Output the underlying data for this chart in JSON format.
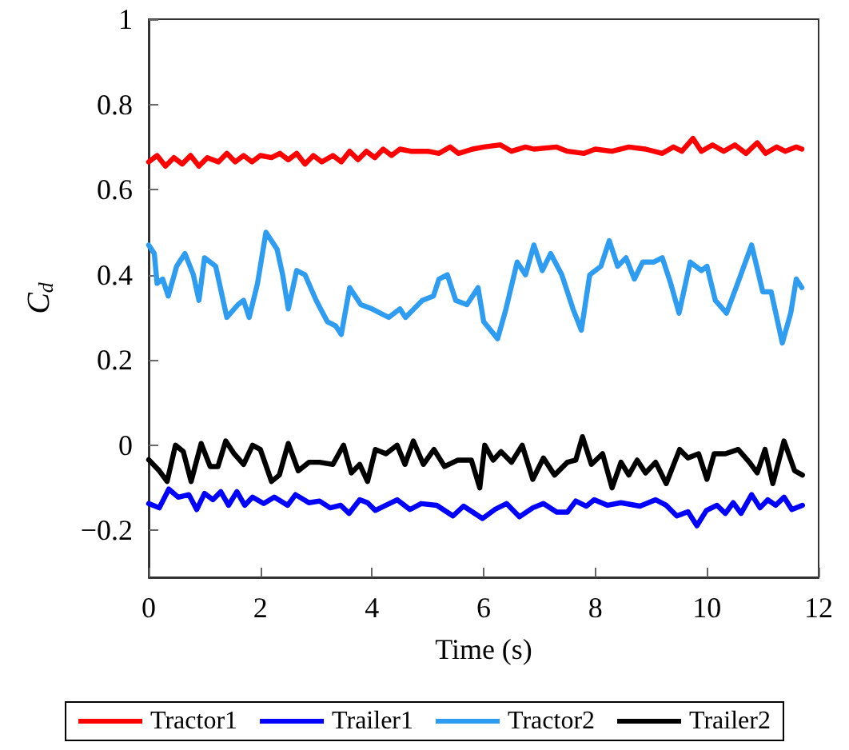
{
  "chart_data": {
    "type": "line",
    "xlabel": "Time (s)",
    "ylabel": "C$_{d}$",
    "xlim": [
      0,
      12
    ],
    "xticks": [
      0,
      2,
      4,
      6,
      8,
      10,
      12
    ],
    "ylim": [
      -0.31,
      1
    ],
    "yticks": [
      -0.2,
      0,
      0.2,
      0.4,
      0.6,
      0.8,
      1
    ],
    "grid": false,
    "legend": "bottom",
    "marker": "none",
    "line_style": "solid",
    "series": [
      {
        "name": "Tractor1",
        "color": "#ff0000",
        "x": [
          0,
          0.15,
          0.3,
          0.45,
          0.6,
          0.75,
          0.9,
          1.05,
          1.25,
          1.4,
          1.55,
          1.7,
          1.85,
          2.0,
          2.2,
          2.35,
          2.5,
          2.65,
          2.8,
          2.95,
          3.1,
          3.3,
          3.45,
          3.6,
          3.75,
          3.9,
          4.05,
          4.2,
          4.35,
          4.5,
          4.7,
          5.0,
          5.2,
          5.4,
          5.55,
          5.8,
          6.0,
          6.3,
          6.5,
          6.75,
          6.9,
          7.3,
          7.5,
          7.8,
          8.0,
          8.3,
          8.6,
          8.9,
          9.2,
          9.4,
          9.55,
          9.75,
          9.9,
          10.1,
          10.3,
          10.5,
          10.7,
          10.9,
          11.05,
          11.25,
          11.4,
          11.6,
          11.7
        ],
        "values": [
          0.665,
          0.68,
          0.655,
          0.675,
          0.66,
          0.68,
          0.655,
          0.675,
          0.665,
          0.685,
          0.665,
          0.68,
          0.665,
          0.68,
          0.675,
          0.685,
          0.67,
          0.685,
          0.66,
          0.68,
          0.665,
          0.68,
          0.665,
          0.69,
          0.67,
          0.69,
          0.675,
          0.695,
          0.68,
          0.695,
          0.69,
          0.69,
          0.685,
          0.7,
          0.685,
          0.695,
          0.7,
          0.705,
          0.69,
          0.7,
          0.695,
          0.7,
          0.69,
          0.685,
          0.695,
          0.69,
          0.7,
          0.695,
          0.685,
          0.7,
          0.69,
          0.72,
          0.69,
          0.705,
          0.69,
          0.705,
          0.685,
          0.71,
          0.685,
          0.7,
          0.69,
          0.7,
          0.695
        ]
      },
      {
        "name": "Trailer1",
        "color": "#0000ff",
        "x": [
          0,
          0.19,
          0.36,
          0.53,
          0.72,
          0.86,
          1.0,
          1.15,
          1.29,
          1.43,
          1.58,
          1.72,
          1.86,
          2.06,
          2.25,
          2.49,
          2.63,
          2.87,
          3.06,
          3.25,
          3.44,
          3.59,
          3.78,
          3.92,
          4.06,
          4.25,
          4.45,
          4.68,
          4.88,
          5.16,
          5.45,
          5.64,
          5.98,
          6.21,
          6.41,
          6.64,
          6.88,
          7.07,
          7.31,
          7.5,
          7.65,
          7.84,
          7.98,
          8.22,
          8.46,
          8.8,
          9.08,
          9.27,
          9.46,
          9.66,
          9.82,
          9.99,
          10.18,
          10.33,
          10.47,
          10.61,
          10.8,
          10.95,
          11.09,
          11.23,
          11.38,
          11.52,
          11.71
        ],
        "values": [
          -0.137,
          -0.147,
          -0.103,
          -0.122,
          -0.116,
          -0.151,
          -0.113,
          -0.128,
          -0.109,
          -0.141,
          -0.109,
          -0.141,
          -0.122,
          -0.137,
          -0.122,
          -0.141,
          -0.116,
          -0.135,
          -0.131,
          -0.147,
          -0.141,
          -0.16,
          -0.128,
          -0.135,
          -0.153,
          -0.141,
          -0.128,
          -0.151,
          -0.137,
          -0.141,
          -0.166,
          -0.143,
          -0.172,
          -0.15,
          -0.137,
          -0.168,
          -0.147,
          -0.137,
          -0.157,
          -0.157,
          -0.131,
          -0.143,
          -0.128,
          -0.141,
          -0.135,
          -0.143,
          -0.128,
          -0.141,
          -0.166,
          -0.156,
          -0.189,
          -0.153,
          -0.141,
          -0.16,
          -0.135,
          -0.16,
          -0.116,
          -0.147,
          -0.128,
          -0.141,
          -0.122,
          -0.151,
          -0.141
        ]
      },
      {
        "name": "Tractor2",
        "color": "#2e9cf0",
        "x": [
          0,
          0.1,
          0.15,
          0.25,
          0.35,
          0.5,
          0.65,
          0.8,
          0.9,
          1.0,
          1.2,
          1.4,
          1.6,
          1.7,
          1.8,
          1.95,
          2.1,
          2.3,
          2.4,
          2.5,
          2.65,
          2.8,
          3.0,
          3.2,
          3.35,
          3.45,
          3.6,
          3.8,
          4.0,
          4.3,
          4.5,
          4.6,
          4.9,
          5.1,
          5.2,
          5.35,
          5.5,
          5.7,
          5.9,
          6.0,
          6.25,
          6.4,
          6.6,
          6.75,
          6.9,
          7.05,
          7.2,
          7.4,
          7.6,
          7.75,
          7.9,
          8.1,
          8.25,
          8.4,
          8.55,
          8.7,
          8.85,
          9.05,
          9.2,
          9.35,
          9.5,
          9.7,
          9.9,
          10.0,
          10.15,
          10.35,
          10.55,
          10.8,
          11.0,
          11.15,
          11.35,
          11.5,
          11.6,
          11.7
        ],
        "values": [
          0.47,
          0.45,
          0.38,
          0.39,
          0.35,
          0.42,
          0.45,
          0.4,
          0.34,
          0.44,
          0.42,
          0.3,
          0.33,
          0.34,
          0.3,
          0.38,
          0.5,
          0.46,
          0.4,
          0.32,
          0.41,
          0.4,
          0.34,
          0.29,
          0.28,
          0.26,
          0.37,
          0.33,
          0.32,
          0.3,
          0.32,
          0.3,
          0.34,
          0.35,
          0.39,
          0.4,
          0.34,
          0.33,
          0.37,
          0.29,
          0.25,
          0.32,
          0.43,
          0.4,
          0.47,
          0.41,
          0.45,
          0.4,
          0.32,
          0.27,
          0.4,
          0.42,
          0.48,
          0.42,
          0.44,
          0.39,
          0.43,
          0.43,
          0.44,
          0.38,
          0.31,
          0.43,
          0.41,
          0.42,
          0.34,
          0.31,
          0.38,
          0.47,
          0.36,
          0.36,
          0.24,
          0.31,
          0.39,
          0.37
        ]
      },
      {
        "name": "Trailer2",
        "color": "#000000",
        "x": [
          0,
          0.19,
          0.33,
          0.48,
          0.62,
          0.76,
          0.94,
          1.1,
          1.24,
          1.38,
          1.53,
          1.7,
          1.86,
          2.0,
          2.2,
          2.34,
          2.5,
          2.68,
          2.87,
          3.06,
          3.3,
          3.49,
          3.63,
          3.78,
          3.92,
          4.06,
          4.25,
          4.45,
          4.59,
          4.74,
          4.92,
          5.11,
          5.3,
          5.54,
          5.78,
          5.93,
          6.02,
          6.17,
          6.31,
          6.5,
          6.69,
          6.88,
          7.07,
          7.27,
          7.5,
          7.65,
          7.77,
          7.93,
          8.13,
          8.3,
          8.46,
          8.6,
          8.75,
          8.9,
          9.08,
          9.27,
          9.51,
          9.66,
          9.85,
          10.0,
          10.13,
          10.33,
          10.56,
          10.76,
          10.9,
          11.04,
          11.18,
          11.38,
          11.57,
          11.71
        ],
        "values": [
          -0.034,
          -0.06,
          -0.085,
          0,
          -0.015,
          -0.085,
          0.004,
          -0.05,
          -0.05,
          0.01,
          -0.02,
          -0.045,
          0,
          -0.01,
          -0.085,
          -0.07,
          0.004,
          -0.06,
          -0.04,
          -0.04,
          -0.045,
          0,
          -0.065,
          -0.045,
          -0.085,
          -0.01,
          -0.02,
          0,
          -0.045,
          0.01,
          -0.045,
          -0.01,
          -0.05,
          -0.035,
          -0.035,
          -0.1,
          0,
          -0.035,
          -0.015,
          -0.04,
          0,
          -0.08,
          -0.03,
          -0.07,
          -0.04,
          -0.035,
          0.02,
          -0.045,
          -0.02,
          -0.1,
          -0.04,
          -0.07,
          -0.035,
          -0.065,
          -0.04,
          -0.09,
          -0.01,
          -0.03,
          -0.02,
          -0.08,
          -0.02,
          -0.02,
          -0.01,
          -0.04,
          -0.065,
          -0.01,
          -0.09,
          0.01,
          -0.06,
          -0.07
        ]
      }
    ]
  }
}
